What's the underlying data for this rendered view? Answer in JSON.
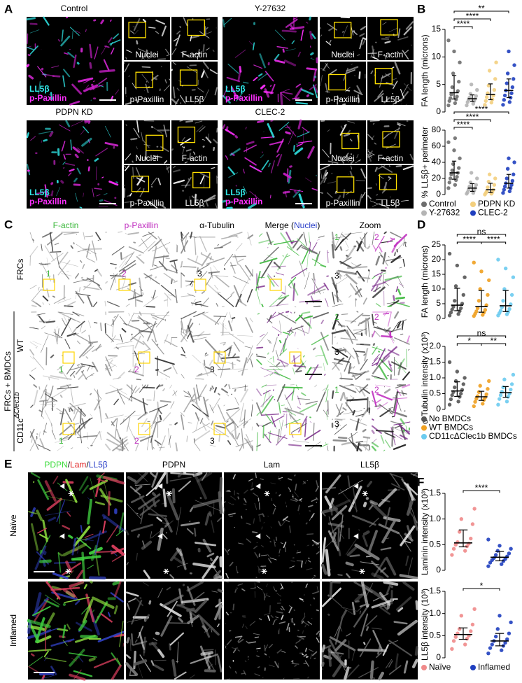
{
  "panel_labels": {
    "A": "A",
    "B": "B",
    "C": "C",
    "D": "D",
    "E": "E",
    "F": "F"
  },
  "panel_a": {
    "blocks": [
      {
        "title": "Control",
        "legend": [
          "LL5β",
          "p-Paxillin"
        ],
        "small": [
          "Nuclei",
          "F-actin",
          "p-Paxillin",
          "LL5β"
        ]
      },
      {
        "title": "Y-27632",
        "legend": [
          "LL5β",
          "p-Paxillin"
        ],
        "small": [
          "Nuclei",
          "F-actin",
          "p-Paxillin",
          "LL5β"
        ]
      },
      {
        "title": "PDPN KD",
        "legend": [
          "LL5β",
          "p-Paxillin"
        ],
        "small": [
          "Nuclei",
          "F-actin",
          "p-Paxillin",
          "LL5β"
        ]
      },
      {
        "title": "CLEC-2",
        "legend": [
          "LL5β",
          "p-Paxillin"
        ],
        "small": [
          "Nuclei",
          "F-actin",
          "p-Paxillin",
          "LL5β"
        ]
      }
    ]
  },
  "panel_c": {
    "headers": [
      {
        "text": "F-actin",
        "color": "#3cb83c"
      },
      {
        "text": "p-Paxillin",
        "color": "#c030c0"
      },
      {
        "text": "α-Tubulin",
        "color": "#000000"
      }
    ],
    "merge_header": [
      {
        "text": "Merge (",
        "color": "#000000"
      },
      {
        "text": "Nuclei",
        "color": "#2a3fc8"
      },
      {
        "text": ")",
        "color": "#000000"
      }
    ],
    "zoom": "Zoom",
    "rows": [
      {
        "base": "FRCs"
      },
      {
        "base": "WT"
      },
      {
        "base": "CD11c",
        "sup": "ΔClec1b"
      }
    ],
    "group_label": "FRCs + BMDCs",
    "markers": [
      {
        "text": "1",
        "color": "#3cb83c"
      },
      {
        "text": "2",
        "color": "#c030c0"
      },
      {
        "text": "3",
        "color": "#000000"
      }
    ]
  },
  "panel_e": {
    "merge_header": [
      {
        "text": "PDPN",
        "color": "#3cdc3c"
      },
      {
        "text": "/",
        "color": "#000000"
      },
      {
        "text": "Lam",
        "color": "#e02020"
      },
      {
        "text": "/",
        "color": "#000000"
      },
      {
        "text": "LL5β",
        "color": "#2a3fc8"
      }
    ],
    "headers": [
      "PDPN",
      "Lam",
      "LL5β"
    ],
    "rows": [
      "Naïve",
      "Inflamed"
    ]
  },
  "chart_data": [
    {
      "type": "dot",
      "ylabel": "FA length (microns)",
      "ylim": [
        0,
        15
      ],
      "yticks": [
        0,
        5,
        10,
        15
      ],
      "series": [
        {
          "name": "Control",
          "color": "#6e6e6e",
          "values": [
            1.2,
            1.6,
            2,
            2.3,
            2.5,
            2.8,
            3.2,
            3.8,
            4.5,
            5.5,
            7,
            9,
            11,
            13
          ]
        },
        {
          "name": "Y-27632",
          "color": "#b4b4b4",
          "values": [
            1.2,
            1.5,
            1.8,
            2,
            2.2,
            2.4,
            2.6,
            2.9,
            3.3,
            4,
            5
          ]
        },
        {
          "name": "PDPN KD",
          "color": "#f3cf7e",
          "values": [
            1.3,
            1.7,
            2,
            2.3,
            2.7,
            3,
            3.4,
            4,
            4.8,
            6,
            7.5,
            9
          ]
        },
        {
          "name": "CLEC-2",
          "color": "#1f3fbf",
          "values": [
            1.3,
            1.8,
            2.2,
            2.6,
            3,
            3.4,
            3.9,
            4.5,
            5.2,
            6,
            7,
            8.5,
            11
          ]
        }
      ],
      "brackets": [
        {
          "from": 0,
          "to": 1,
          "label": "****"
        },
        {
          "from": 0,
          "to": 2,
          "label": "****"
        },
        {
          "from": 0,
          "to": 3,
          "label": "**"
        }
      ]
    },
    {
      "type": "dot",
      "ylabel": "% LL5β+ perimeter",
      "ylim": [
        0,
        80
      ],
      "yticks": [
        0,
        20,
        40,
        60,
        80
      ],
      "series": [
        {
          "name": "Control",
          "color": "#6e6e6e",
          "values": [
            8,
            12,
            15,
            18,
            20,
            22,
            25,
            27,
            30,
            33,
            38,
            45,
            55,
            65,
            70
          ]
        },
        {
          "name": "Y-27632",
          "color": "#b4b4b4",
          "values": [
            1,
            2,
            3,
            5,
            6,
            8,
            10,
            12,
            15,
            20,
            27
          ]
        },
        {
          "name": "PDPN KD",
          "color": "#f3cf7e",
          "values": [
            0,
            1,
            2,
            3,
            4,
            6,
            9,
            12,
            16,
            20,
            25
          ]
        },
        {
          "name": "CLEC-2",
          "color": "#1f3fbf",
          "values": [
            2,
            4,
            6,
            8,
            10,
            12,
            14,
            17,
            20,
            25,
            32,
            40,
            45
          ]
        }
      ],
      "brackets": [
        {
          "from": 0,
          "to": 1,
          "label": "****"
        },
        {
          "from": 0,
          "to": 2,
          "label": "****"
        },
        {
          "from": 0,
          "to": 3,
          "label": "****"
        }
      ],
      "legend_columns": 2
    },
    {
      "type": "dot",
      "ylabel": "FA length (microns)",
      "ylim": [
        0,
        25
      ],
      "yticks": [
        0,
        5,
        10,
        15,
        20,
        25
      ],
      "series": [
        {
          "name": "No BMDCs",
          "color": "#555555",
          "values": [
            1,
            1.5,
            2,
            2.5,
            3,
            3.5,
            4,
            5,
            6,
            8,
            11,
            14,
            18,
            22
          ]
        },
        {
          "name": "WT BMDCs",
          "color": "#f0a020",
          "values": [
            0.8,
            1.2,
            1.6,
            2,
            2.4,
            2.9,
            3.5,
            4.5,
            6,
            8,
            10,
            13,
            16,
            19
          ]
        },
        {
          "name": "CD11cΔClec1b BMDCs",
          "color": "#6ccbef",
          "values": [
            1,
            1.4,
            1.8,
            2.2,
            2.6,
            3.2,
            3.8,
            4.8,
            6,
            8,
            10,
            14,
            17,
            20
          ]
        }
      ],
      "brackets": [
        {
          "from": 0,
          "to": 1,
          "label": "****"
        },
        {
          "from": 1,
          "to": 2,
          "label": "****"
        },
        {
          "from": 0,
          "to": 2,
          "label": "ns"
        }
      ]
    },
    {
      "type": "dot",
      "ylabel": "α-Tubulin intensity (x10³)",
      "ylim": [
        0,
        2
      ],
      "yticks": [
        0,
        0.5,
        {
          "value": 1,
          "label": "1.0"
        },
        1.5,
        {
          "value": 2,
          "label": "2.0"
        }
      ],
      "series": [
        {
          "name": "No BMDCs",
          "color": "#555555",
          "values": [
            0.15,
            0.25,
            0.32,
            0.4,
            0.45,
            0.5,
            0.55,
            0.62,
            0.7,
            0.8,
            0.9,
            1,
            1.2,
            1.5
          ]
        },
        {
          "name": "WT BMDCs",
          "color": "#f0a020",
          "values": [
            0.1,
            0.18,
            0.24,
            0.3,
            0.34,
            0.38,
            0.42,
            0.48,
            0.55,
            0.65,
            0.75,
            0.9
          ]
        },
        {
          "name": "CD11cΔClec1b BMDCs",
          "color": "#6ccbef",
          "values": [
            0.15,
            0.25,
            0.33,
            0.4,
            0.45,
            0.5,
            0.56,
            0.63,
            0.7,
            0.8,
            0.95,
            1.1
          ]
        }
      ],
      "brackets": [
        {
          "from": 0,
          "to": 1,
          "label": "*"
        },
        {
          "from": 1,
          "to": 2,
          "label": "**"
        },
        {
          "from": 0,
          "to": 2,
          "label": "ns"
        }
      ],
      "legend_columns": 1
    },
    {
      "type": "dot",
      "ylabel": "Laminin intensity (x10³)",
      "ylim": [
        0,
        1.5
      ],
      "yticks": [
        0,
        0.5,
        {
          "value": 1,
          "label": "1.0"
        },
        1.5
      ],
      "series": [
        {
          "name": "Naïve",
          "color": "#f08a8a",
          "values": [
            0.3,
            0.38,
            0.42,
            0.47,
            0.5,
            0.52,
            0.55,
            0.62,
            0.75,
            0.9,
            1,
            1.2
          ]
        },
        {
          "name": "Inflamed",
          "color": "#1f3fbf",
          "values": [
            0.08,
            0.12,
            0.15,
            0.18,
            0.2,
            0.22,
            0.24,
            0.27,
            0.3,
            0.33,
            0.38,
            0.42,
            0.48,
            0.6
          ]
        }
      ],
      "brackets": [
        {
          "from": 0,
          "to": 1,
          "label": "****"
        }
      ]
    },
    {
      "type": "dot",
      "ylabel": "LL5β intensity (10³)",
      "ylim": [
        0,
        1.5
      ],
      "yticks": [
        0,
        0.5,
        {
          "value": 1,
          "label": "1.0"
        },
        1.5
      ],
      "series": [
        {
          "name": "Naïve",
          "color": "#f08a8a",
          "values": [
            0.2,
            0.3,
            0.38,
            0.43,
            0.47,
            0.5,
            0.55,
            0.6,
            0.65,
            0.75,
            0.95,
            1.1
          ]
        },
        {
          "name": "Inflamed",
          "color": "#1f3fbf",
          "values": [
            0.1,
            0.17,
            0.22,
            0.27,
            0.3,
            0.34,
            0.38,
            0.42,
            0.48,
            0.55,
            0.65,
            0.8,
            0.95
          ]
        }
      ],
      "brackets": [
        {
          "from": 0,
          "to": 1,
          "label": "*"
        }
      ],
      "legend_columns": 2
    }
  ]
}
